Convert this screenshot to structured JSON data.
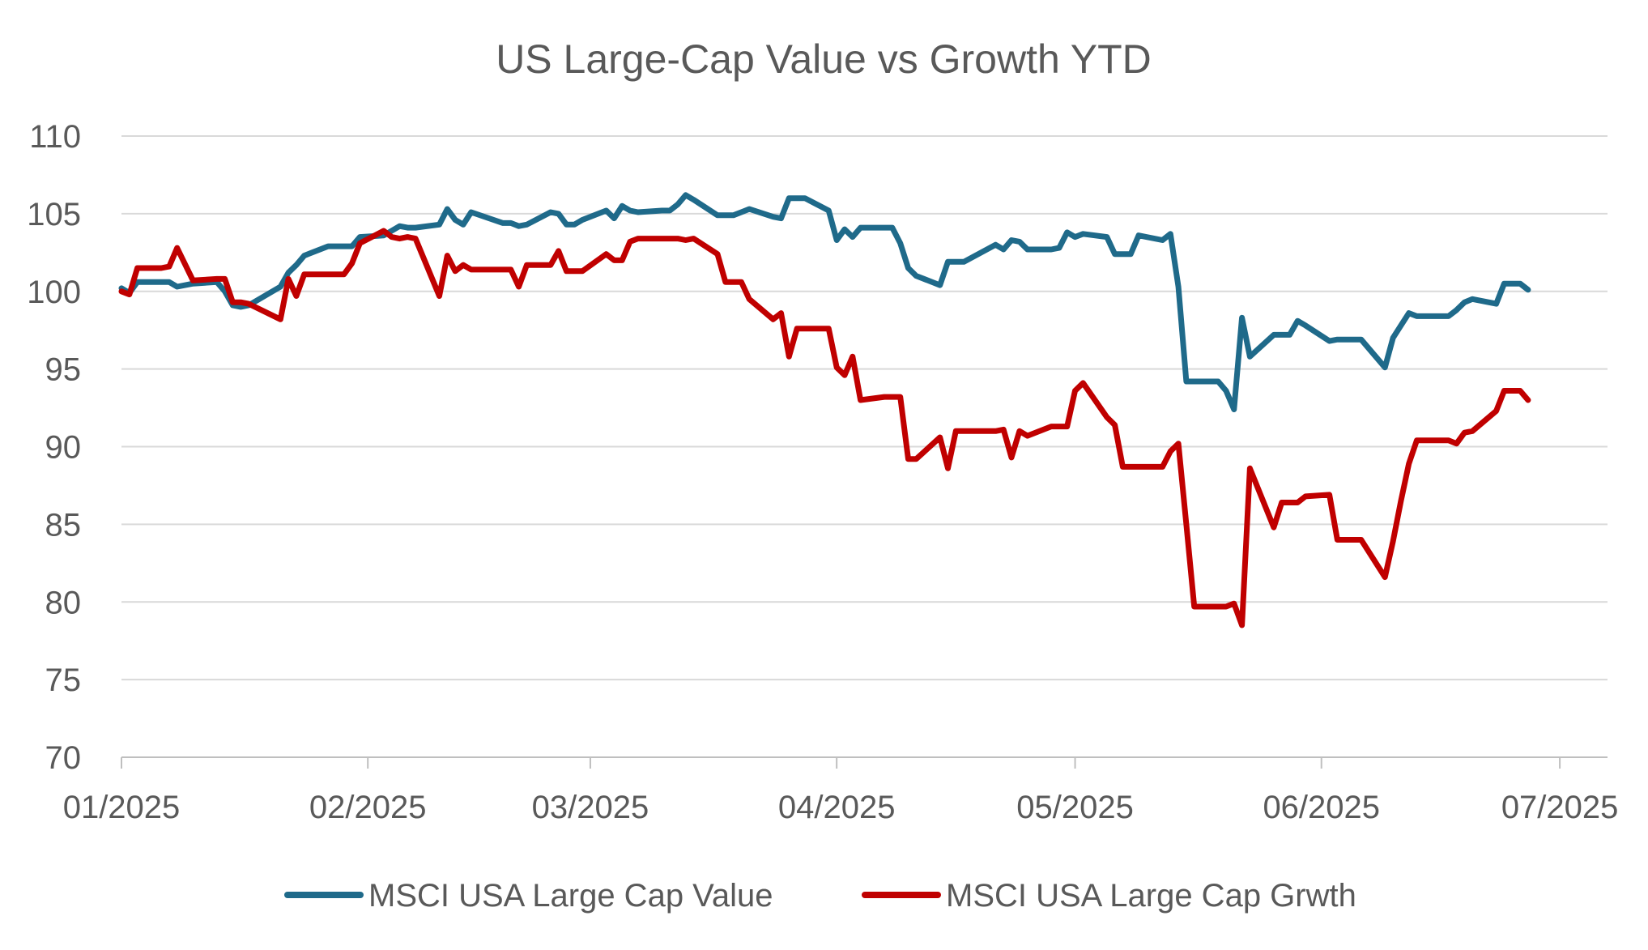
{
  "chart_data": {
    "type": "line",
    "title": "US Large-Cap Value vs Growth YTD",
    "xlabel": "",
    "ylabel": "",
    "ylim": [
      70,
      110
    ],
    "yticks": [
      "70",
      "75",
      "80",
      "85",
      "90",
      "95",
      "100",
      "105",
      "110"
    ],
    "xticks": [
      {
        "label": "01/2025",
        "x": "2025-01-01"
      },
      {
        "label": "02/2025",
        "x": "2025-02-01"
      },
      {
        "label": "03/2025",
        "x": "2025-03-01"
      },
      {
        "label": "04/2025",
        "x": "2025-04-01"
      },
      {
        "label": "05/2025",
        "x": "2025-05-01"
      },
      {
        "label": "06/2025",
        "x": "2025-06-01"
      },
      {
        "label": "07/2025",
        "x": "2025-07-01"
      }
    ],
    "xlim": [
      "2025-01-01",
      "2025-07-07"
    ],
    "grid": "horizontal",
    "legend_position": "bottom",
    "series": [
      {
        "name": "MSCI USA Large Cap Value",
        "color": "#1f6a8a",
        "points": [
          [
            "2025-01-01",
            100.2
          ],
          [
            "2025-01-02",
            99.9
          ],
          [
            "2025-01-03",
            100.6
          ],
          [
            "2025-01-06",
            100.6
          ],
          [
            "2025-01-07",
            100.6
          ],
          [
            "2025-01-08",
            100.3
          ],
          [
            "2025-01-10",
            100.5
          ],
          [
            "2025-01-13",
            100.6
          ],
          [
            "2025-01-14",
            100.0
          ],
          [
            "2025-01-15",
            99.1
          ],
          [
            "2025-01-16",
            99.0
          ],
          [
            "2025-01-17",
            99.1
          ],
          [
            "2025-01-21",
            100.3
          ],
          [
            "2025-01-22",
            101.2
          ],
          [
            "2025-01-23",
            101.7
          ],
          [
            "2025-01-24",
            102.3
          ],
          [
            "2025-01-27",
            102.9
          ],
          [
            "2025-01-28",
            102.9
          ],
          [
            "2025-01-29",
            102.9
          ],
          [
            "2025-01-30",
            102.9
          ],
          [
            "2025-01-31",
            103.5
          ],
          [
            "2025-02-03",
            103.6
          ],
          [
            "2025-02-04",
            103.9
          ],
          [
            "2025-02-05",
            104.2
          ],
          [
            "2025-02-06",
            104.1
          ],
          [
            "2025-02-07",
            104.1
          ],
          [
            "2025-02-10",
            104.3
          ],
          [
            "2025-02-11",
            105.3
          ],
          [
            "2025-02-12",
            104.6
          ],
          [
            "2025-02-13",
            104.3
          ],
          [
            "2025-02-14",
            105.1
          ],
          [
            "2025-02-18",
            104.4
          ],
          [
            "2025-02-19",
            104.4
          ],
          [
            "2025-02-20",
            104.2
          ],
          [
            "2025-02-21",
            104.3
          ],
          [
            "2025-02-24",
            105.1
          ],
          [
            "2025-02-25",
            105.0
          ],
          [
            "2025-02-26",
            104.3
          ],
          [
            "2025-02-27",
            104.3
          ],
          [
            "2025-02-28",
            104.6
          ],
          [
            "2025-03-03",
            105.2
          ],
          [
            "2025-03-04",
            104.7
          ],
          [
            "2025-03-05",
            105.5
          ],
          [
            "2025-03-06",
            105.2
          ],
          [
            "2025-03-07",
            105.1
          ],
          [
            "2025-03-10",
            105.2
          ],
          [
            "2025-03-11",
            105.2
          ],
          [
            "2025-03-12",
            105.6
          ],
          [
            "2025-03-13",
            106.2
          ],
          [
            "2025-03-14",
            105.9
          ],
          [
            "2025-03-17",
            104.9
          ],
          [
            "2025-03-18",
            104.9
          ],
          [
            "2025-03-19",
            104.9
          ],
          [
            "2025-03-20",
            105.1
          ],
          [
            "2025-03-21",
            105.3
          ],
          [
            "2025-03-24",
            104.8
          ],
          [
            "2025-03-25",
            104.7
          ],
          [
            "2025-03-26",
            106.0
          ],
          [
            "2025-03-27",
            106.0
          ],
          [
            "2025-03-28",
            106.0
          ],
          [
            "2025-03-31",
            105.2
          ],
          [
            "2025-04-01",
            103.3
          ],
          [
            "2025-04-02",
            104.0
          ],
          [
            "2025-04-03",
            103.5
          ],
          [
            "2025-04-04",
            104.1
          ],
          [
            "2025-04-07",
            104.1
          ],
          [
            "2025-04-08",
            104.1
          ],
          [
            "2025-04-09",
            103.1
          ],
          [
            "2025-04-10",
            101.5
          ],
          [
            "2025-04-11",
            101.0
          ],
          [
            "2025-04-14",
            100.4
          ],
          [
            "2025-04-15",
            101.9
          ],
          [
            "2025-04-16",
            101.9
          ],
          [
            "2025-04-17",
            101.9
          ],
          [
            "2025-04-21",
            103.0
          ],
          [
            "2025-04-22",
            102.7
          ],
          [
            "2025-04-23",
            103.3
          ],
          [
            "2025-04-24",
            103.2
          ],
          [
            "2025-04-25",
            102.7
          ],
          [
            "2025-04-28",
            102.7
          ],
          [
            "2025-04-29",
            102.8
          ],
          [
            "2025-04-30",
            103.8
          ],
          [
            "2025-05-01",
            103.5
          ],
          [
            "2025-05-02",
            103.7
          ],
          [
            "2025-05-05",
            103.5
          ],
          [
            "2025-05-06",
            102.4
          ],
          [
            "2025-05-07",
            102.4
          ],
          [
            "2025-05-08",
            102.4
          ],
          [
            "2025-05-09",
            103.6
          ],
          [
            "2025-05-12",
            103.3
          ],
          [
            "2025-05-13",
            103.7
          ],
          [
            "2025-05-14",
            100.3
          ],
          [
            "2025-05-15",
            94.2
          ],
          [
            "2025-05-16",
            94.2
          ],
          [
            "2025-05-19",
            94.2
          ],
          [
            "2025-05-20",
            93.6
          ],
          [
            "2025-05-21",
            92.4
          ],
          [
            "2025-05-22",
            98.3
          ],
          [
            "2025-05-23",
            95.8
          ],
          [
            "2025-05-26",
            97.2
          ],
          [
            "2025-05-27",
            97.2
          ],
          [
            "2025-05-28",
            97.2
          ],
          [
            "2025-05-29",
            98.1
          ],
          [
            "2025-05-30",
            97.8
          ],
          [
            "2025-06-02",
            96.8
          ],
          [
            "2025-06-03",
            96.9
          ],
          [
            "2025-06-04",
            96.9
          ],
          [
            "2025-06-05",
            96.9
          ],
          [
            "2025-06-06",
            96.9
          ],
          [
            "2025-06-09",
            95.1
          ],
          [
            "2025-06-10",
            97.0
          ],
          [
            "2025-06-11",
            97.8
          ],
          [
            "2025-06-12",
            98.6
          ],
          [
            "2025-06-13",
            98.4
          ],
          [
            "2025-06-16",
            98.4
          ],
          [
            "2025-06-17",
            98.4
          ],
          [
            "2025-06-18",
            98.8
          ],
          [
            "2025-06-19",
            99.3
          ],
          [
            "2025-06-20",
            99.5
          ],
          [
            "2025-06-23",
            99.2
          ],
          [
            "2025-06-24",
            100.5
          ],
          [
            "2025-06-25",
            100.5
          ],
          [
            "2025-06-26",
            100.5
          ],
          [
            "2025-06-27",
            100.1
          ]
        ]
      },
      {
        "name": "MSCI USA Large Cap Grwth",
        "color": "#c00000",
        "points": [
          [
            "2025-01-01",
            100.0
          ],
          [
            "2025-01-02",
            99.8
          ],
          [
            "2025-01-03",
            101.5
          ],
          [
            "2025-01-06",
            101.5
          ],
          [
            "2025-01-07",
            101.6
          ],
          [
            "2025-01-08",
            102.8
          ],
          [
            "2025-01-10",
            100.7
          ],
          [
            "2025-01-13",
            100.8
          ],
          [
            "2025-01-14",
            100.8
          ],
          [
            "2025-01-15",
            99.3
          ],
          [
            "2025-01-16",
            99.3
          ],
          [
            "2025-01-17",
            99.2
          ],
          [
            "2025-01-21",
            98.2
          ],
          [
            "2025-01-22",
            100.8
          ],
          [
            "2025-01-23",
            99.7
          ],
          [
            "2025-01-24",
            101.1
          ],
          [
            "2025-01-27",
            101.1
          ],
          [
            "2025-01-28",
            101.1
          ],
          [
            "2025-01-29",
            101.1
          ],
          [
            "2025-01-30",
            101.8
          ],
          [
            "2025-01-31",
            103.1
          ],
          [
            "2025-02-03",
            103.9
          ],
          [
            "2025-02-04",
            103.5
          ],
          [
            "2025-02-05",
            103.4
          ],
          [
            "2025-02-06",
            103.5
          ],
          [
            "2025-02-07",
            103.4
          ],
          [
            "2025-02-10",
            99.7
          ],
          [
            "2025-02-11",
            102.3
          ],
          [
            "2025-02-12",
            101.3
          ],
          [
            "2025-02-13",
            101.7
          ],
          [
            "2025-02-14",
            101.4
          ],
          [
            "2025-02-18",
            101.4
          ],
          [
            "2025-02-19",
            101.4
          ],
          [
            "2025-02-20",
            100.3
          ],
          [
            "2025-02-21",
            101.7
          ],
          [
            "2025-02-24",
            101.7
          ],
          [
            "2025-02-25",
            102.6
          ],
          [
            "2025-02-26",
            101.3
          ],
          [
            "2025-02-27",
            101.3
          ],
          [
            "2025-02-28",
            101.3
          ],
          [
            "2025-03-03",
            102.4
          ],
          [
            "2025-03-04",
            102.0
          ],
          [
            "2025-03-05",
            102.0
          ],
          [
            "2025-03-06",
            103.2
          ],
          [
            "2025-03-07",
            103.4
          ],
          [
            "2025-03-10",
            103.4
          ],
          [
            "2025-03-11",
            103.4
          ],
          [
            "2025-03-12",
            103.4
          ],
          [
            "2025-03-13",
            103.3
          ],
          [
            "2025-03-14",
            103.4
          ],
          [
            "2025-03-17",
            102.4
          ],
          [
            "2025-03-18",
            100.6
          ],
          [
            "2025-03-19",
            100.6
          ],
          [
            "2025-03-20",
            100.6
          ],
          [
            "2025-03-21",
            99.5
          ],
          [
            "2025-03-24",
            98.2
          ],
          [
            "2025-03-25",
            98.6
          ],
          [
            "2025-03-26",
            95.8
          ],
          [
            "2025-03-27",
            97.6
          ],
          [
            "2025-03-28",
            97.6
          ],
          [
            "2025-03-31",
            97.6
          ],
          [
            "2025-04-01",
            95.1
          ],
          [
            "2025-04-02",
            94.6
          ],
          [
            "2025-04-03",
            95.8
          ],
          [
            "2025-04-04",
            93.0
          ],
          [
            "2025-04-07",
            93.2
          ],
          [
            "2025-04-08",
            93.2
          ],
          [
            "2025-04-09",
            93.2
          ],
          [
            "2025-04-10",
            89.2
          ],
          [
            "2025-04-11",
            89.2
          ],
          [
            "2025-04-14",
            90.6
          ],
          [
            "2025-04-15",
            88.6
          ],
          [
            "2025-04-16",
            91.0
          ],
          [
            "2025-04-17",
            91.0
          ],
          [
            "2025-04-21",
            91.0
          ],
          [
            "2025-04-22",
            91.1
          ],
          [
            "2025-04-23",
            89.3
          ],
          [
            "2025-04-24",
            91.0
          ],
          [
            "2025-04-25",
            90.7
          ],
          [
            "2025-04-28",
            91.3
          ],
          [
            "2025-04-29",
            91.3
          ],
          [
            "2025-04-30",
            91.3
          ],
          [
            "2025-05-01",
            93.6
          ],
          [
            "2025-05-02",
            94.1
          ],
          [
            "2025-05-05",
            91.9
          ],
          [
            "2025-05-06",
            91.4
          ],
          [
            "2025-05-07",
            88.7
          ],
          [
            "2025-05-08",
            88.7
          ],
          [
            "2025-05-09",
            88.7
          ],
          [
            "2025-05-12",
            88.7
          ],
          [
            "2025-05-13",
            89.7
          ],
          [
            "2025-05-14",
            90.2
          ],
          [
            "2025-05-15",
            85.0
          ],
          [
            "2025-05-16",
            79.7
          ],
          [
            "2025-05-19",
            79.7
          ],
          [
            "2025-05-20",
            79.7
          ],
          [
            "2025-05-21",
            79.9
          ],
          [
            "2025-05-22",
            78.5
          ],
          [
            "2025-05-23",
            88.6
          ],
          [
            "2025-05-26",
            84.8
          ],
          [
            "2025-05-27",
            86.4
          ],
          [
            "2025-05-28",
            86.4
          ],
          [
            "2025-05-29",
            86.4
          ],
          [
            "2025-05-30",
            86.8
          ],
          [
            "2025-06-02",
            86.9
          ],
          [
            "2025-06-03",
            84.0
          ],
          [
            "2025-06-04",
            84.0
          ],
          [
            "2025-06-05",
            84.0
          ],
          [
            "2025-06-06",
            84.0
          ],
          [
            "2025-06-09",
            81.6
          ],
          [
            "2025-06-10",
            83.9
          ],
          [
            "2025-06-11",
            86.5
          ],
          [
            "2025-06-12",
            88.9
          ],
          [
            "2025-06-13",
            90.4
          ],
          [
            "2025-06-16",
            90.4
          ],
          [
            "2025-06-17",
            90.4
          ],
          [
            "2025-06-18",
            90.2
          ],
          [
            "2025-06-19",
            90.9
          ],
          [
            "2025-06-20",
            91.0
          ],
          [
            "2025-06-23",
            92.3
          ],
          [
            "2025-06-24",
            93.6
          ],
          [
            "2025-06-25",
            93.6
          ],
          [
            "2025-06-26",
            93.6
          ],
          [
            "2025-06-27",
            93.0
          ]
        ]
      }
    ]
  }
}
